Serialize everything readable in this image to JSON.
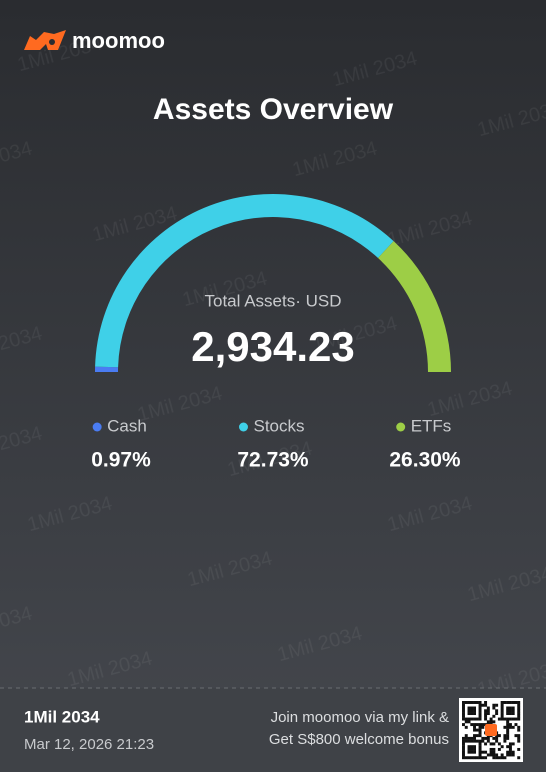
{
  "header": {
    "brand": "moomoo"
  },
  "chart_data": {
    "type": "pie",
    "title": "Assets Overview",
    "center_label": "Total Assets· USD",
    "center_value": "2,934.23",
    "categories": [
      "Cash",
      "Stocks",
      "ETFs"
    ],
    "values": [
      0.97,
      72.73,
      26.3
    ],
    "value_labels": [
      "0.97%",
      "72.73%",
      "26.30%"
    ],
    "colors": [
      "#4a7cf2",
      "#3fd0e8",
      "#9dce46"
    ]
  },
  "watermark": "1Mil 2034",
  "footer": {
    "name": "1Mil 2034",
    "date": "Mar 12, 2026 21:23",
    "promo": [
      "Join moomoo via my link &",
      "Get S$800 welcome bonus"
    ]
  }
}
